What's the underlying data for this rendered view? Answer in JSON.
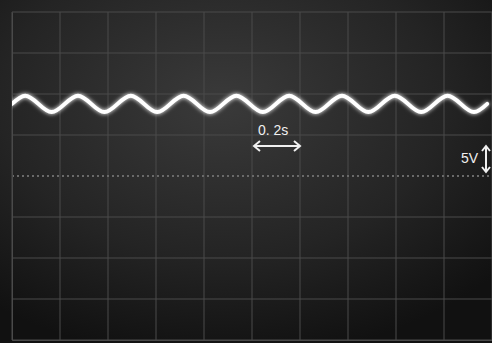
{
  "chart_data": {
    "type": "line",
    "annotations": [
      "0. 2s",
      "5V"
    ],
    "x": [
      0,
      0.055,
      0.11,
      0.165,
      0.22,
      0.275,
      0.33,
      0.385,
      0.44,
      0.495,
      0.55,
      0.605,
      0.66,
      0.715,
      0.77,
      0.825,
      0.88,
      0.935,
      0.99,
      1.045,
      1.1,
      1.155,
      1.21,
      1.265,
      1.32,
      1.375,
      1.43,
      1.485,
      1.54,
      1.595,
      1.65,
      1.705,
      1.76,
      1.815,
      1.87,
      1.925,
      1.98
    ],
    "values": [
      8.8,
      9.8,
      8.8,
      7.8,
      8.8,
      9.8,
      8.8,
      7.8,
      8.8,
      9.8,
      8.8,
      7.8,
      8.8,
      9.8,
      8.8,
      7.8,
      8.8,
      9.8,
      8.8,
      7.8,
      8.8,
      9.8,
      8.8,
      7.8,
      8.8,
      9.8,
      8.8,
      7.8,
      8.8,
      9.8,
      8.8,
      7.8,
      8.8,
      9.8,
      8.8,
      7.8,
      8.8
    ],
    "color": "#ffffff",
    "xlim": [
      0,
      2
    ],
    "xticks": [
      0,
      0.2,
      0.4,
      0.6,
      0.8,
      1,
      1.2,
      1.4,
      1.6,
      1.8,
      2
    ],
    "ylim": [
      -20,
      20
    ],
    "yticks": [
      -20,
      -15,
      -10,
      -5,
      0,
      5,
      10,
      15,
      20
    ],
    "grid": true,
    "tick_labels": false
  }
}
